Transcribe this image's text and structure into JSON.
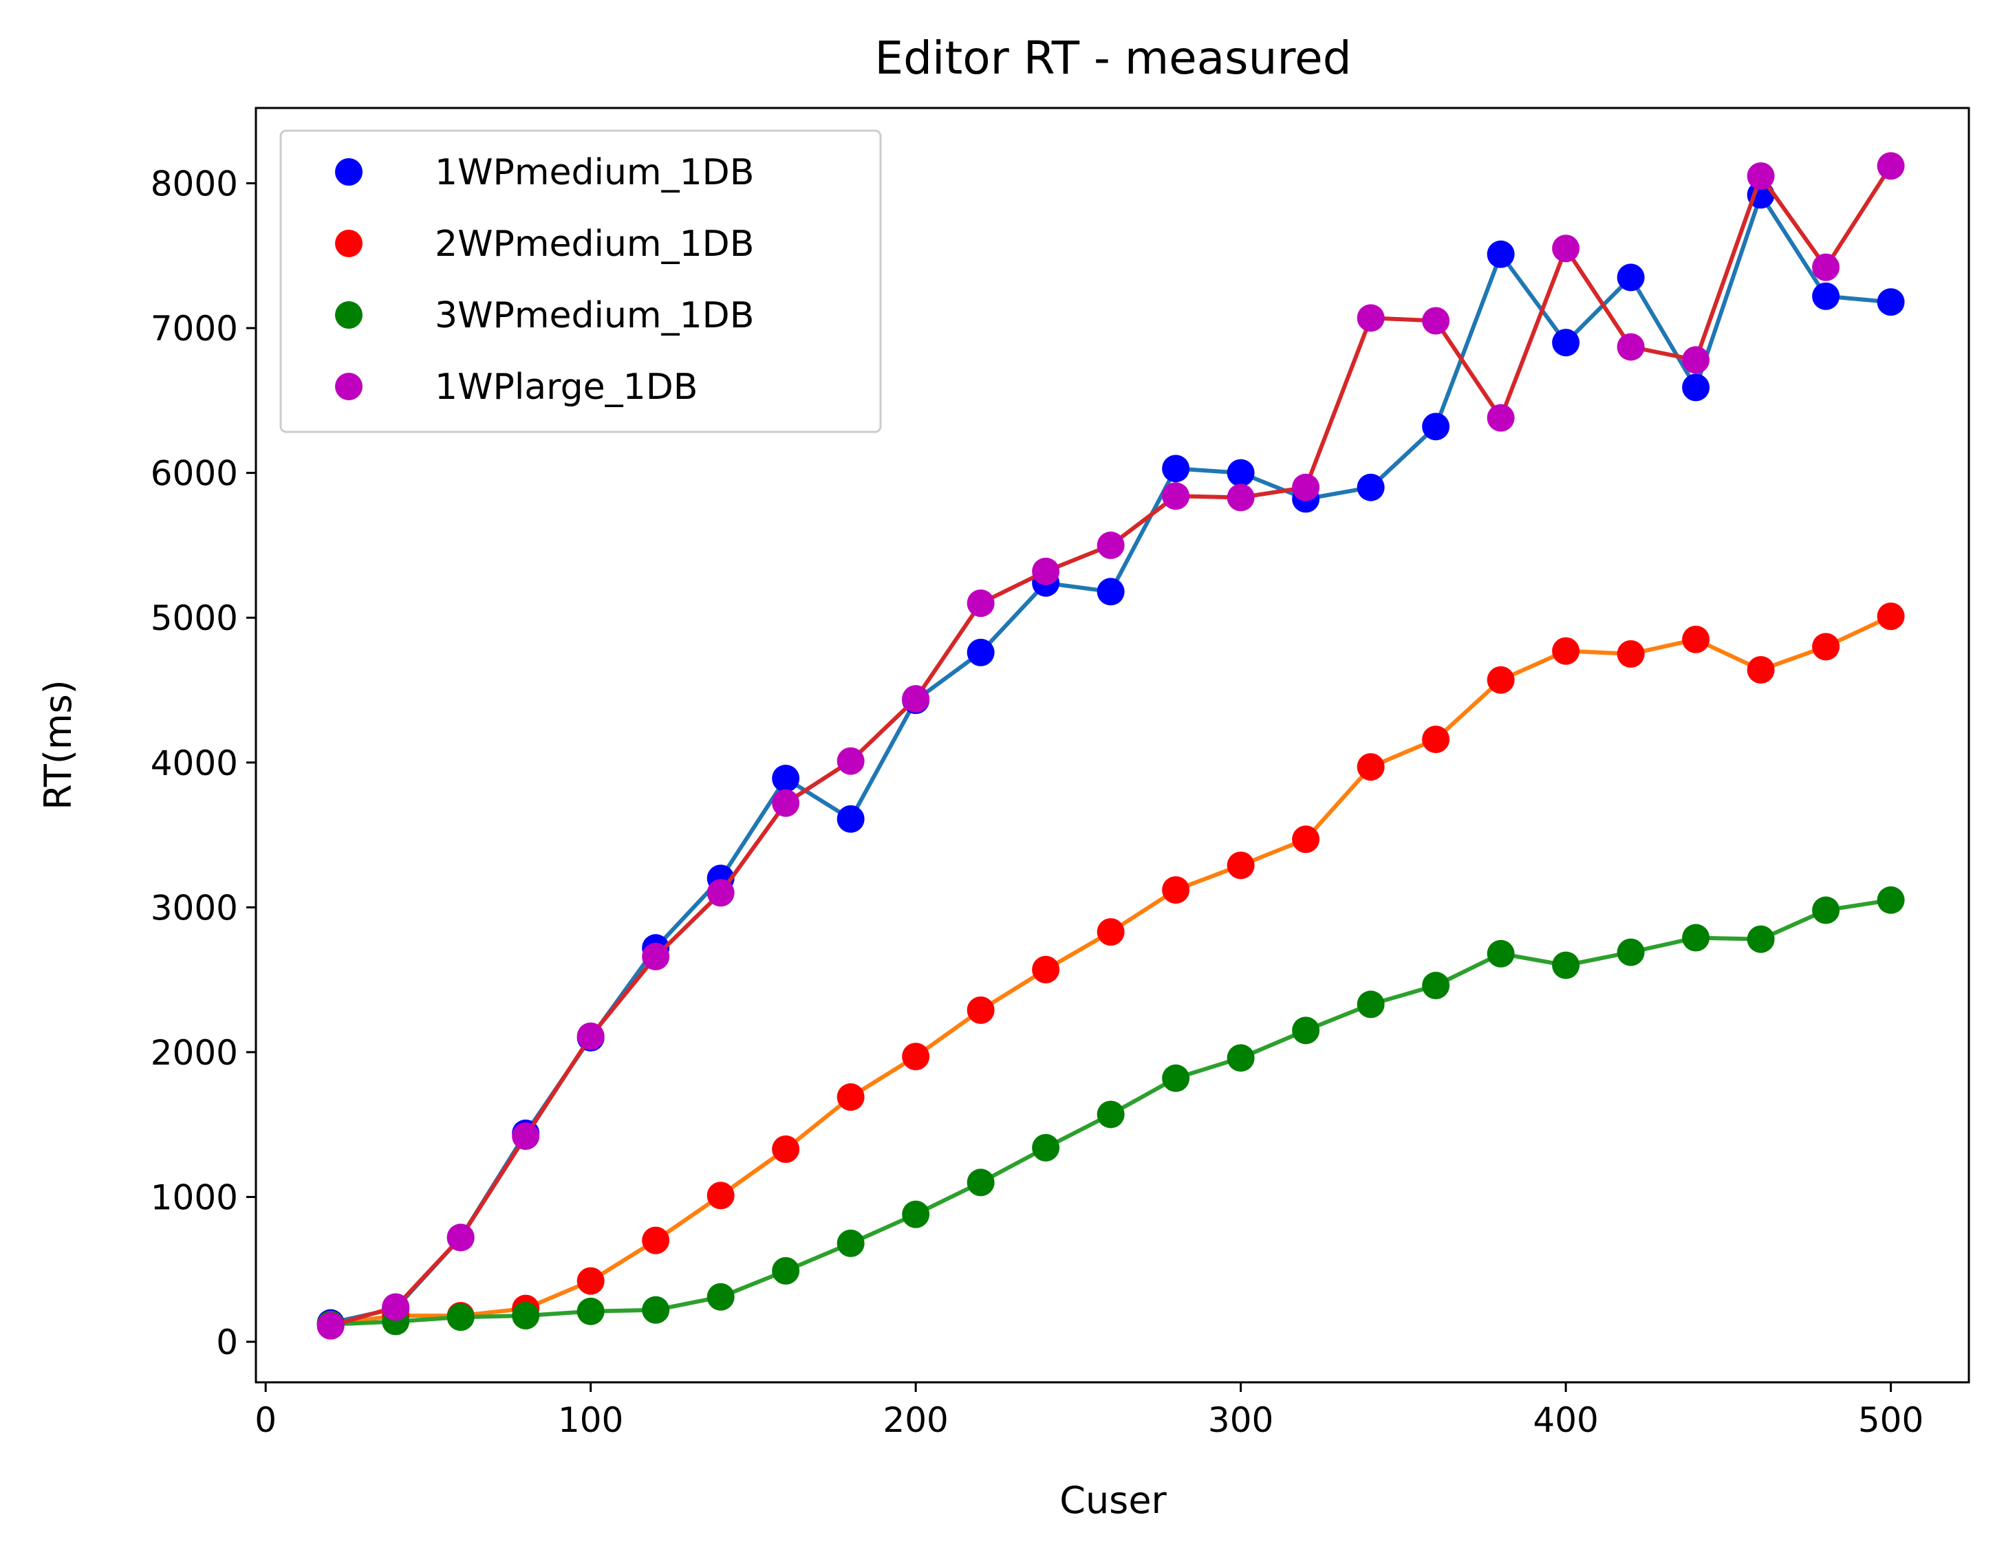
{
  "chart_data": {
    "type": "line",
    "title": "Editor RT - measured",
    "xlabel": "Cuser",
    "ylabel": "RT(ms)",
    "xlim": [
      -3,
      524
    ],
    "ylim": [
      -280,
      8520
    ],
    "xticks": [
      0,
      100,
      200,
      300,
      400,
      500
    ],
    "yticks": [
      0,
      1000,
      2000,
      3000,
      4000,
      5000,
      6000,
      7000,
      8000
    ],
    "xtick_labels": [
      "0",
      "100",
      "200",
      "300",
      "400",
      "500"
    ],
    "ytick_labels": [
      "0",
      "1000",
      "2000",
      "3000",
      "4000",
      "5000",
      "6000",
      "7000",
      "8000"
    ],
    "grid": false,
    "legend_position": "top-left",
    "x": [
      20,
      40,
      60,
      80,
      100,
      120,
      140,
      160,
      180,
      200,
      220,
      240,
      260,
      280,
      300,
      320,
      340,
      360,
      380,
      400,
      420,
      440,
      460,
      480,
      500
    ],
    "series": [
      {
        "name": "1WPmedium_1DB",
        "marker_color": "#0000ff",
        "line_color": "#1f77b4",
        "values": [
          130,
          230,
          720,
          1440,
          2100,
          2720,
          3200,
          3890,
          3610,
          4430,
          4760,
          5240,
          5180,
          6030,
          6000,
          5820,
          5900,
          6320,
          7510,
          6900,
          7350,
          6590,
          7920,
          7220,
          7180
        ]
      },
      {
        "name": "2WPmedium_1DB",
        "marker_color": "#ff0000",
        "line_color": "#ff7f0e",
        "values": [
          120,
          180,
          180,
          230,
          420,
          700,
          1010,
          1330,
          1690,
          1970,
          2290,
          2570,
          2830,
          3120,
          3290,
          3470,
          3970,
          4160,
          4570,
          4770,
          4750,
          4850,
          4640,
          4800,
          5010
        ]
      },
      {
        "name": "3WPmedium_1DB",
        "marker_color": "#008000",
        "line_color": "#2ca02c",
        "values": [
          120,
          140,
          170,
          180,
          210,
          220,
          310,
          490,
          680,
          880,
          1100,
          1340,
          1570,
          1820,
          1960,
          2150,
          2330,
          2460,
          2680,
          2600,
          2690,
          2790,
          2780,
          2980,
          3050
        ]
      },
      {
        "name": "1WPlarge_1DB",
        "marker_color": "#bf00bf",
        "line_color": "#d62728",
        "values": [
          110,
          240,
          720,
          1420,
          2110,
          2660,
          3100,
          3720,
          4010,
          4440,
          5100,
          5320,
          5500,
          5840,
          5830,
          5900,
          7070,
          7050,
          6380,
          7550,
          6870,
          6780,
          8050,
          7420,
          8120
        ]
      }
    ]
  }
}
